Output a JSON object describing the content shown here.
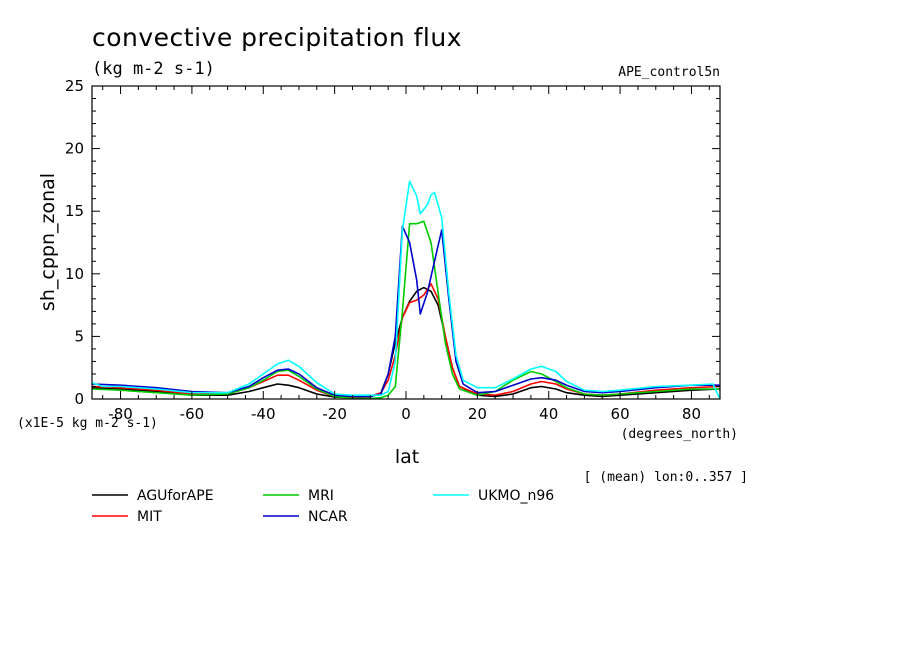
{
  "chart_data": {
    "type": "line",
    "title": "convective precipitation flux",
    "units": "(kg m-2 s-1)",
    "experiment": "APE_control5n",
    "ylabel": "sh_cppn_zonal",
    "xlabel": "lat",
    "x_units": "(degrees_north)",
    "y_scale_note": "(x1E-5 kg m-2 s-1)",
    "averaging_note": "[ (mean) lon:0..357 ]",
    "xlim": [
      -88,
      88
    ],
    "ylim": [
      0,
      25
    ],
    "x_ticks": [
      -80,
      -60,
      -40,
      -20,
      0,
      20,
      40,
      60,
      80
    ],
    "x_tick_labels": [
      "-80",
      "-60",
      "-40",
      "-20",
      "0",
      "20",
      "40",
      "60",
      "80"
    ],
    "y_ticks": [
      0,
      5,
      10,
      15,
      20,
      25
    ],
    "y_tick_labels": [
      "0",
      "5",
      "10",
      "15",
      "20",
      "25"
    ],
    "legend_position": "below-left",
    "series": [
      {
        "name": "AGUforAPE",
        "color": "#000000",
        "points": [
          [
            -88,
            0.9
          ],
          [
            -80,
            0.8
          ],
          [
            -70,
            0.6
          ],
          [
            -60,
            0.3
          ],
          [
            -50,
            0.3
          ],
          [
            -44,
            0.6
          ],
          [
            -40,
            0.9
          ],
          [
            -36,
            1.2
          ],
          [
            -33,
            1.1
          ],
          [
            -30,
            0.9
          ],
          [
            -25,
            0.4
          ],
          [
            -20,
            0.15
          ],
          [
            -15,
            0.1
          ],
          [
            -10,
            0.2
          ],
          [
            -7,
            0.5
          ],
          [
            -5,
            2.0
          ],
          [
            -3,
            4.5
          ],
          [
            -1,
            6.5
          ],
          [
            1,
            7.8
          ],
          [
            3,
            8.6
          ],
          [
            5,
            8.9
          ],
          [
            7,
            8.6
          ],
          [
            9,
            7.5
          ],
          [
            11,
            5.0
          ],
          [
            13,
            2.5
          ],
          [
            15,
            1.0
          ],
          [
            20,
            0.3
          ],
          [
            25,
            0.2
          ],
          [
            30,
            0.4
          ],
          [
            35,
            0.9
          ],
          [
            38,
            1.0
          ],
          [
            42,
            0.8
          ],
          [
            45,
            0.5
          ],
          [
            50,
            0.3
          ],
          [
            55,
            0.2
          ],
          [
            60,
            0.3
          ],
          [
            70,
            0.5
          ],
          [
            80,
            0.7
          ],
          [
            88,
            0.8
          ]
        ]
      },
      {
        "name": "MIT",
        "color": "#ff0000",
        "points": [
          [
            -88,
            1.0
          ],
          [
            -80,
            0.9
          ],
          [
            -70,
            0.7
          ],
          [
            -60,
            0.4
          ],
          [
            -50,
            0.4
          ],
          [
            -44,
            0.9
          ],
          [
            -40,
            1.4
          ],
          [
            -36,
            1.9
          ],
          [
            -33,
            1.9
          ],
          [
            -30,
            1.5
          ],
          [
            -25,
            0.7
          ],
          [
            -20,
            0.2
          ],
          [
            -15,
            0.1
          ],
          [
            -10,
            0.2
          ],
          [
            -7,
            0.5
          ],
          [
            -5,
            1.5
          ],
          [
            -3,
            3.5
          ],
          [
            -1,
            6.5
          ],
          [
            1,
            7.7
          ],
          [
            3,
            7.9
          ],
          [
            5,
            8.3
          ],
          [
            7,
            9.2
          ],
          [
            9,
            8.0
          ],
          [
            11,
            5.0
          ],
          [
            13,
            2.5
          ],
          [
            15,
            1.0
          ],
          [
            20,
            0.4
          ],
          [
            25,
            0.3
          ],
          [
            30,
            0.6
          ],
          [
            35,
            1.2
          ],
          [
            38,
            1.4
          ],
          [
            42,
            1.2
          ],
          [
            45,
            0.8
          ],
          [
            50,
            0.4
          ],
          [
            55,
            0.3
          ],
          [
            60,
            0.4
          ],
          [
            70,
            0.7
          ],
          [
            80,
            0.9
          ],
          [
            88,
            1.0
          ]
        ]
      },
      {
        "name": "MRI",
        "color": "#00cc00",
        "points": [
          [
            -88,
            0.8
          ],
          [
            -80,
            0.7
          ],
          [
            -70,
            0.5
          ],
          [
            -60,
            0.3
          ],
          [
            -50,
            0.4
          ],
          [
            -44,
            0.9
          ],
          [
            -40,
            1.5
          ],
          [
            -36,
            2.2
          ],
          [
            -33,
            2.3
          ],
          [
            -30,
            1.8
          ],
          [
            -25,
            0.8
          ],
          [
            -20,
            0.2
          ],
          [
            -15,
            0.05
          ],
          [
            -10,
            0.05
          ],
          [
            -7,
            0.1
          ],
          [
            -5,
            0.3
          ],
          [
            -3,
            1.0
          ],
          [
            -1,
            7.0
          ],
          [
            1,
            14.0
          ],
          [
            3,
            14.0
          ],
          [
            5,
            14.2
          ],
          [
            7,
            12.5
          ],
          [
            9,
            8.5
          ],
          [
            11,
            4.5
          ],
          [
            13,
            2.0
          ],
          [
            15,
            0.8
          ],
          [
            20,
            0.3
          ],
          [
            25,
            0.6
          ],
          [
            30,
            1.5
          ],
          [
            35,
            2.2
          ],
          [
            38,
            2.0
          ],
          [
            42,
            1.4
          ],
          [
            45,
            0.9
          ],
          [
            50,
            0.4
          ],
          [
            55,
            0.3
          ],
          [
            60,
            0.4
          ],
          [
            70,
            0.6
          ],
          [
            80,
            0.8
          ],
          [
            88,
            0.8
          ]
        ]
      },
      {
        "name": "NCAR",
        "color": "#0000cc",
        "points": [
          [
            -88,
            1.2
          ],
          [
            -80,
            1.1
          ],
          [
            -70,
            0.9
          ],
          [
            -60,
            0.6
          ],
          [
            -50,
            0.5
          ],
          [
            -44,
            1.0
          ],
          [
            -40,
            1.7
          ],
          [
            -36,
            2.3
          ],
          [
            -33,
            2.4
          ],
          [
            -30,
            2.0
          ],
          [
            -25,
            0.9
          ],
          [
            -20,
            0.3
          ],
          [
            -15,
            0.2
          ],
          [
            -10,
            0.2
          ],
          [
            -7,
            0.4
          ],
          [
            -5,
            2.0
          ],
          [
            -3,
            5.0
          ],
          [
            -1,
            13.8
          ],
          [
            1,
            12.5
          ],
          [
            3,
            9.5
          ],
          [
            4,
            6.8
          ],
          [
            6,
            8.5
          ],
          [
            8,
            11.0
          ],
          [
            10,
            13.5
          ],
          [
            12,
            8.0
          ],
          [
            14,
            3.0
          ],
          [
            16,
            1.2
          ],
          [
            20,
            0.5
          ],
          [
            25,
            0.6
          ],
          [
            30,
            1.1
          ],
          [
            35,
            1.6
          ],
          [
            38,
            1.7
          ],
          [
            42,
            1.5
          ],
          [
            45,
            1.1
          ],
          [
            50,
            0.6
          ],
          [
            55,
            0.5
          ],
          [
            60,
            0.6
          ],
          [
            70,
            0.9
          ],
          [
            80,
            1.1
          ],
          [
            88,
            1.1
          ]
        ]
      },
      {
        "name": "UKMO_n96",
        "color": "#00ffff",
        "points": [
          [
            -88,
            1.3
          ],
          [
            -85,
            1.0
          ],
          [
            -80,
            1.0
          ],
          [
            -70,
            0.8
          ],
          [
            -60,
            0.5
          ],
          [
            -50,
            0.5
          ],
          [
            -44,
            1.2
          ],
          [
            -40,
            2.0
          ],
          [
            -36,
            2.8
          ],
          [
            -33,
            3.1
          ],
          [
            -30,
            2.6
          ],
          [
            -25,
            1.3
          ],
          [
            -20,
            0.4
          ],
          [
            -15,
            0.3
          ],
          [
            -10,
            0.3
          ],
          [
            -7,
            0.3
          ],
          [
            -5,
            0.6
          ],
          [
            -3,
            3.0
          ],
          [
            -1,
            13.5
          ],
          [
            1,
            17.4
          ],
          [
            3,
            16.2
          ],
          [
            4,
            14.8
          ],
          [
            6,
            15.5
          ],
          [
            7,
            16.3
          ],
          [
            8,
            16.5
          ],
          [
            10,
            14.5
          ],
          [
            12,
            8.5
          ],
          [
            14,
            3.5
          ],
          [
            16,
            1.5
          ],
          [
            20,
            0.9
          ],
          [
            25,
            0.9
          ],
          [
            30,
            1.6
          ],
          [
            35,
            2.4
          ],
          [
            38,
            2.6
          ],
          [
            42,
            2.2
          ],
          [
            45,
            1.4
          ],
          [
            50,
            0.7
          ],
          [
            55,
            0.6
          ],
          [
            60,
            0.7
          ],
          [
            70,
            1.0
          ],
          [
            80,
            1.1
          ],
          [
            86,
            1.2
          ],
          [
            88,
            0.0
          ]
        ]
      }
    ]
  }
}
